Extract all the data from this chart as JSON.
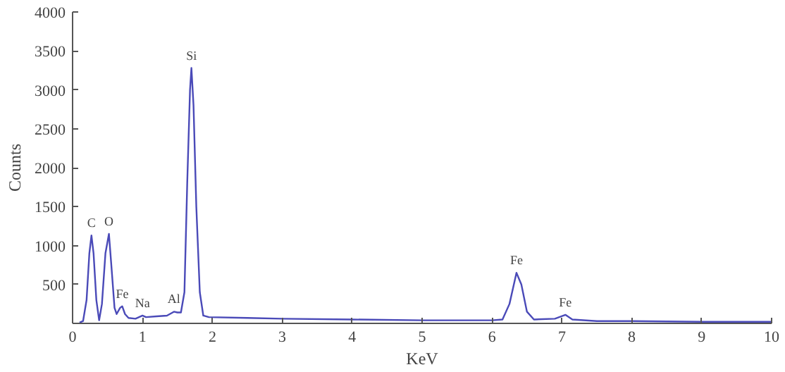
{
  "chart_data": {
    "type": "line",
    "xlabel": "KeV",
    "ylabel": "Counts",
    "xlim": [
      0,
      10
    ],
    "ylim": [
      0,
      4000
    ],
    "xticks": [
      0,
      1,
      2,
      3,
      4,
      5,
      6,
      7,
      8,
      9,
      10
    ],
    "yticks": [
      {
        "value": 0,
        "label": null
      },
      500,
      1000,
      1500,
      2000,
      2500,
      3000,
      3500,
      4000
    ],
    "grid": false,
    "series": [
      {
        "color": "#4a4ab8",
        "x": [
          0.1,
          0.15,
          0.2,
          0.24,
          0.27,
          0.3,
          0.34,
          0.38,
          0.42,
          0.47,
          0.52,
          0.55,
          0.6,
          0.63,
          0.68,
          0.71,
          0.75,
          0.8,
          0.9,
          1.0,
          1.05,
          1.2,
          1.35,
          1.45,
          1.5,
          1.55,
          1.6,
          1.64,
          1.68,
          1.7,
          1.73,
          1.77,
          1.82,
          1.87,
          1.95,
          2.5,
          3,
          4,
          5,
          6,
          6.15,
          6.25,
          6.35,
          6.42,
          6.5,
          6.6,
          6.9,
          7.05,
          7.15,
          7.5,
          8,
          9,
          10
        ],
        "values": [
          10,
          30,
          300,
          900,
          1130,
          900,
          300,
          40,
          250,
          900,
          1150,
          800,
          200,
          120,
          200,
          220,
          120,
          70,
          60,
          100,
          80,
          90,
          100,
          150,
          140,
          140,
          400,
          1800,
          3000,
          3280,
          2800,
          1500,
          400,
          100,
          80,
          70,
          60,
          50,
          40,
          40,
          50,
          250,
          650,
          500,
          150,
          50,
          60,
          110,
          50,
          30,
          30,
          20,
          20
        ]
      }
    ],
    "annotations": [
      {
        "text": "C",
        "x": 0.27,
        "y": 1130
      },
      {
        "text": "O",
        "x": 0.52,
        "y": 1150
      },
      {
        "text": "Fe",
        "x": 0.71,
        "y": 220
      },
      {
        "text": "Na",
        "x": 1.0,
        "y": 100
      },
      {
        "text": "Al",
        "x": 1.45,
        "y": 150
      },
      {
        "text": "Si",
        "x": 1.7,
        "y": 3280
      },
      {
        "text": "Fe",
        "x": 6.35,
        "y": 650
      },
      {
        "text": "Fe",
        "x": 7.05,
        "y": 110
      }
    ]
  }
}
